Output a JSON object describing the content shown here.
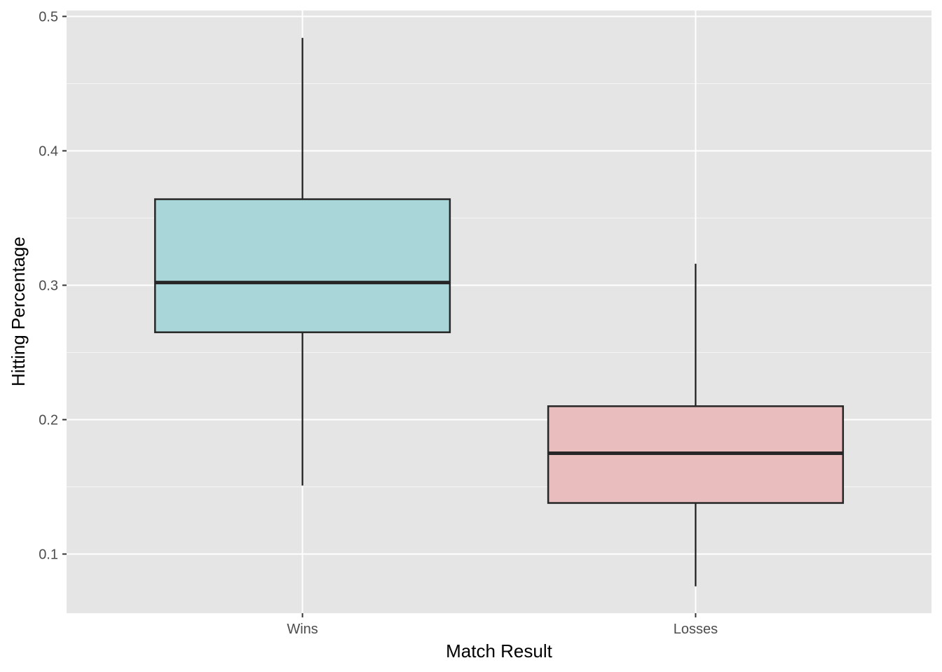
{
  "chart_data": {
    "type": "box",
    "title": "",
    "xlabel": "Match Result",
    "ylabel": "Hitting Percentage",
    "ylim": [
      0.056,
      0.5044
    ],
    "y_ticks": [
      0.1,
      0.2,
      0.3,
      0.4,
      0.5
    ],
    "y_tick_labels": [
      "0.1",
      "0.2",
      "0.3",
      "0.4",
      "0.5"
    ],
    "y_minor_ticks": [
      0.15,
      0.25,
      0.35,
      0.45
    ],
    "categories": [
      "Wins",
      "Losses"
    ],
    "boxes": [
      {
        "category": "Wins",
        "min": 0.151,
        "q1": 0.265,
        "median": 0.302,
        "q3": 0.364,
        "max": 0.484,
        "fill": "#a9d6d9"
      },
      {
        "category": "Losses",
        "min": 0.076,
        "q1": 0.138,
        "median": 0.175,
        "q3": 0.21,
        "max": 0.316,
        "fill": "#e9bcbd"
      }
    ],
    "grid": true,
    "legend": "none",
    "colors": {
      "panel_background": "#e5e5e5",
      "grid_major": "#ffffff",
      "box_outline": "#262626",
      "whisker": "#1a1a1a",
      "tick_mark": "#333333"
    }
  }
}
